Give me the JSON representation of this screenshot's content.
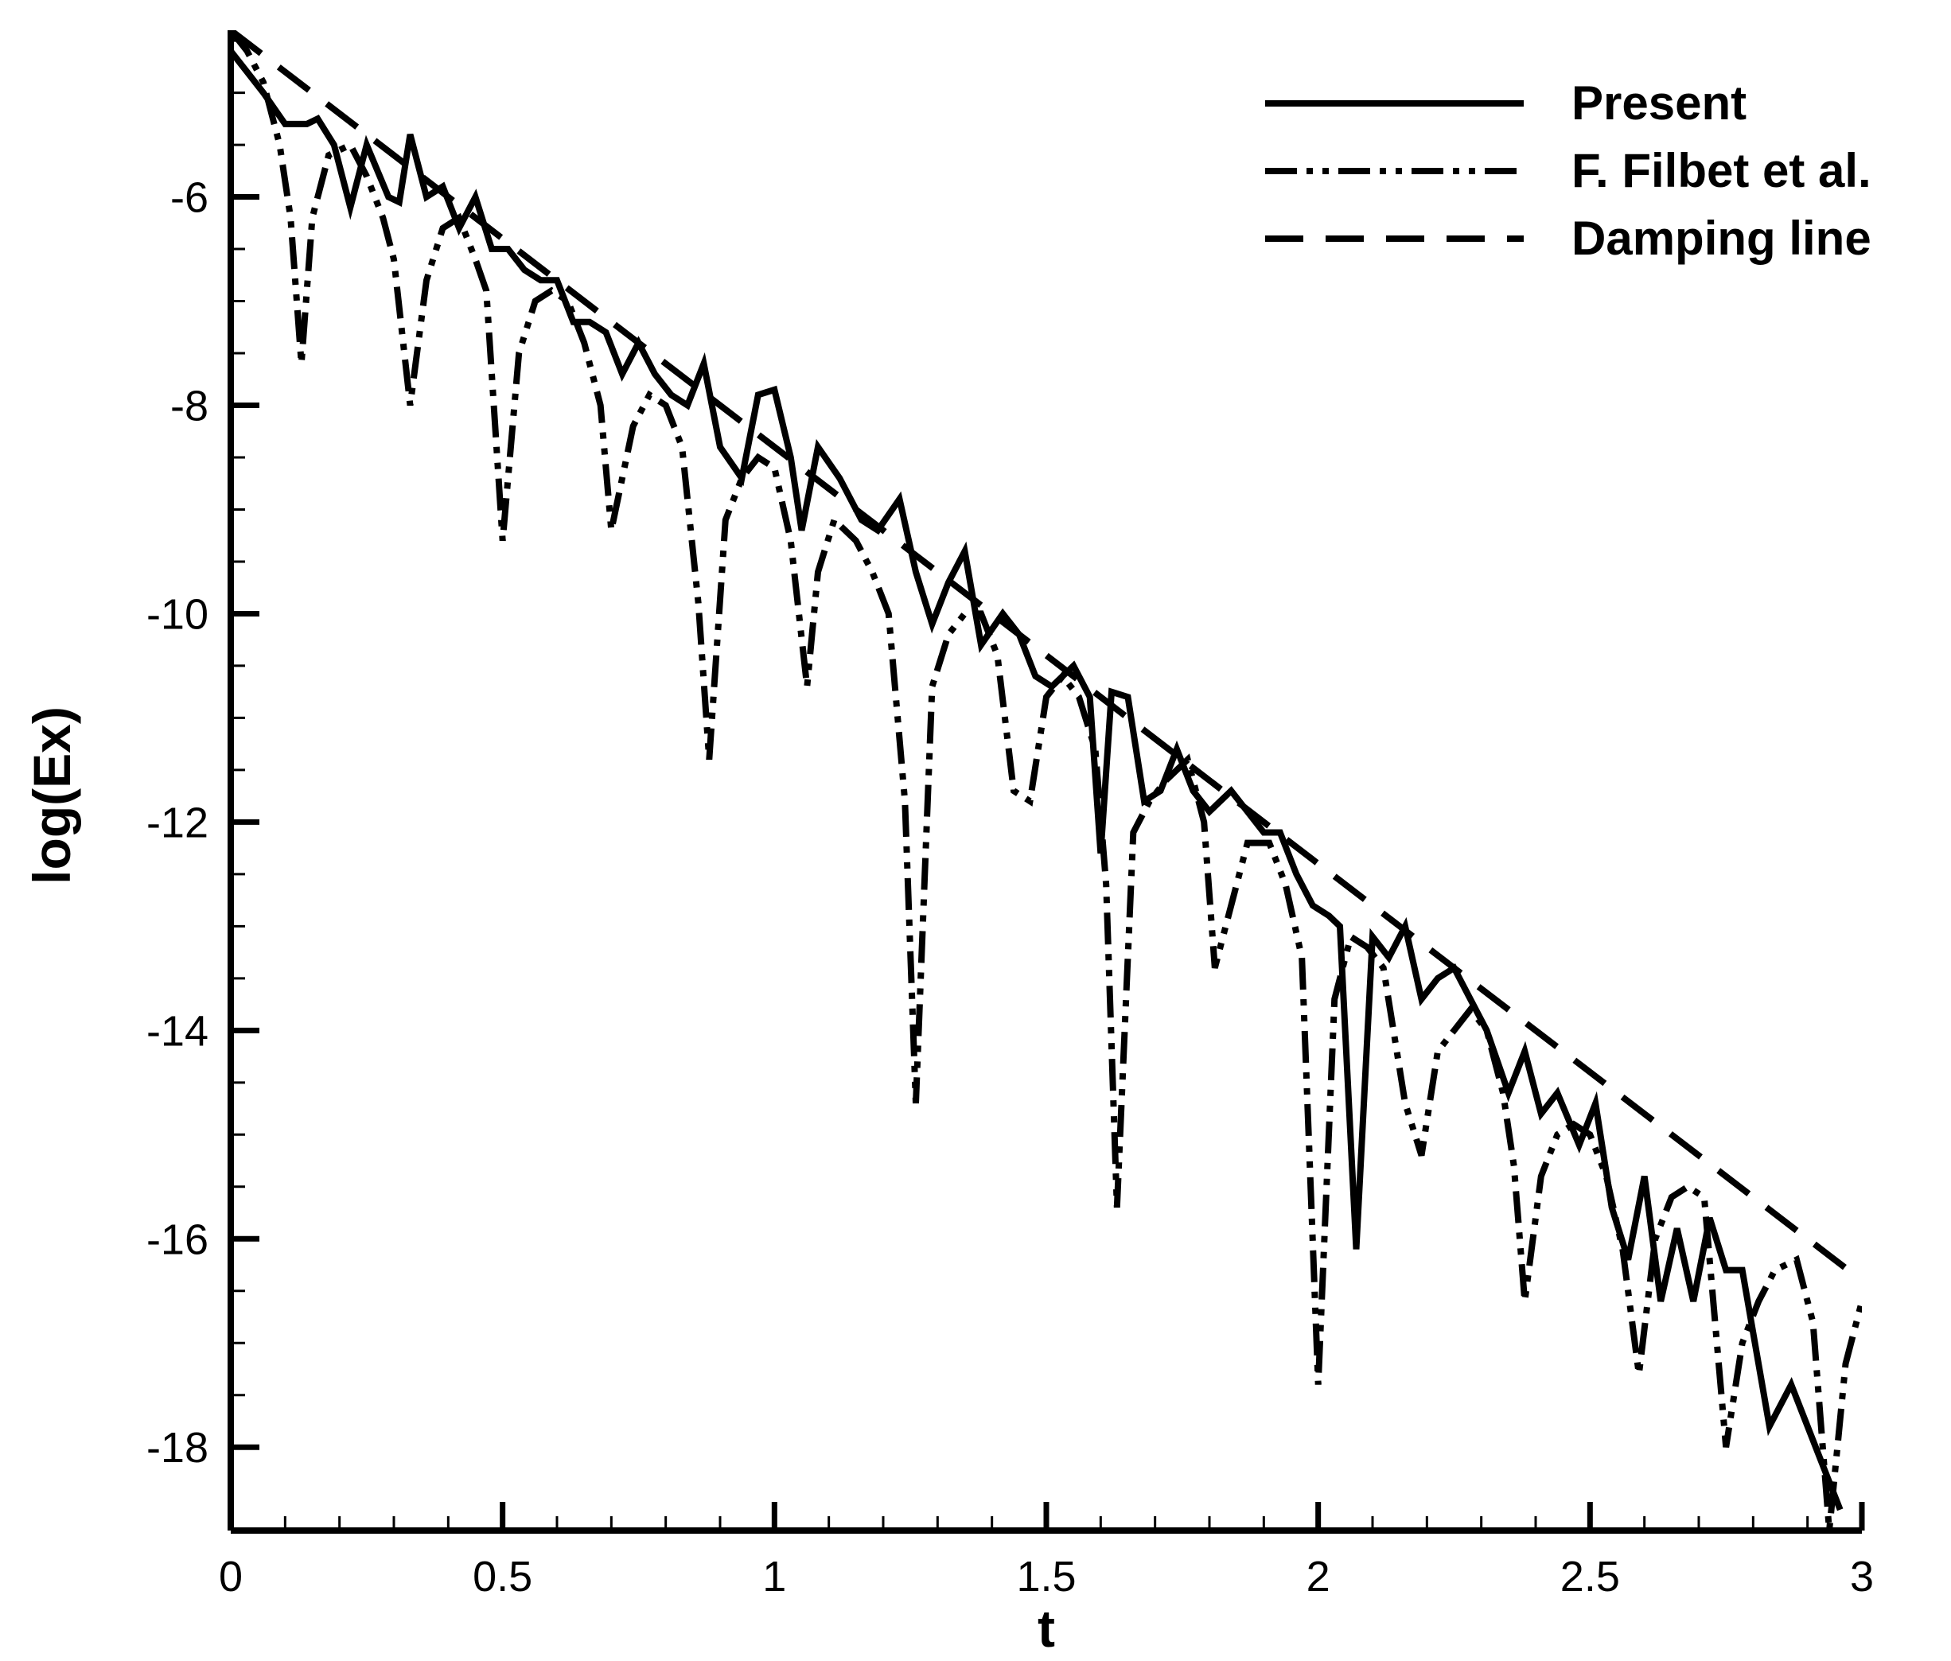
{
  "chart_data": {
    "type": "line",
    "title": "",
    "xlabel": "t",
    "ylabel": "log(Ex)",
    "xlim": [
      0,
      3
    ],
    "ylim": [
      -18.8,
      -4.4
    ],
    "xticks": [
      0,
      0.5,
      1,
      1.5,
      2,
      2.5,
      3
    ],
    "xtick_labels": [
      "0",
      "0.5",
      "1",
      "1.5",
      "2",
      "2.5",
      "3"
    ],
    "yticks": [
      -6,
      -8,
      -10,
      -12,
      -14,
      -16,
      -18
    ],
    "ytick_labels": [
      "-6",
      "-8",
      "-10",
      "-12",
      "-14",
      "-16",
      "-18"
    ],
    "grid": false,
    "legend_position": "top-right",
    "series": [
      {
        "name": "Present",
        "style": "solid",
        "x": [
          0,
          0.03,
          0.06,
          0.1,
          0.14,
          0.16,
          0.19,
          0.22,
          0.25,
          0.29,
          0.31,
          0.33,
          0.36,
          0.39,
          0.42,
          0.45,
          0.48,
          0.51,
          0.54,
          0.57,
          0.6,
          0.63,
          0.66,
          0.69,
          0.72,
          0.75,
          0.78,
          0.81,
          0.84,
          0.87,
          0.9,
          0.94,
          0.97,
          1.0,
          1.03,
          1.05,
          1.08,
          1.12,
          1.16,
          1.19,
          1.23,
          1.26,
          1.29,
          1.32,
          1.35,
          1.38,
          1.42,
          1.45,
          1.48,
          1.51,
          1.55,
          1.58,
          1.6,
          1.62,
          1.65,
          1.68,
          1.71,
          1.74,
          1.77,
          1.8,
          1.84,
          1.87,
          1.9,
          1.93,
          1.96,
          1.99,
          2.02,
          2.04,
          2.07,
          2.1,
          2.13,
          2.16,
          2.19,
          2.22,
          2.25,
          2.29,
          2.31,
          2.35,
          2.38,
          2.41,
          2.44,
          2.48,
          2.51,
          2.54,
          2.57,
          2.6,
          2.63,
          2.66,
          2.69,
          2.72,
          2.75,
          2.78,
          2.8,
          2.83,
          2.87,
          2.9,
          2.93,
          2.96
        ],
        "y": [
          -4.6,
          -4.8,
          -5.0,
          -5.3,
          -5.3,
          -5.25,
          -5.5,
          -6.1,
          -5.5,
          -6.0,
          -6.05,
          -5.4,
          -6.0,
          -5.9,
          -6.3,
          -6.0,
          -6.5,
          -6.5,
          -6.7,
          -6.8,
          -6.8,
          -7.2,
          -7.2,
          -7.3,
          -7.7,
          -7.4,
          -7.7,
          -7.9,
          -8.0,
          -7.6,
          -8.4,
          -8.7,
          -7.9,
          -7.85,
          -8.5,
          -9.2,
          -8.4,
          -8.7,
          -9.1,
          -9.2,
          -8.9,
          -9.6,
          -10.1,
          -9.7,
          -9.4,
          -10.3,
          -10.0,
          -10.2,
          -10.6,
          -10.7,
          -10.5,
          -10.8,
          -12.3,
          -10.75,
          -10.8,
          -11.8,
          -11.7,
          -11.3,
          -11.7,
          -11.9,
          -11.7,
          -11.9,
          -12.1,
          -12.1,
          -12.5,
          -12.8,
          -12.9,
          -13.0,
          -16.1,
          -13.1,
          -13.3,
          -13.0,
          -13.7,
          -13.5,
          -13.4,
          -13.8,
          -14.0,
          -14.6,
          -14.2,
          -14.8,
          -14.6,
          -15.1,
          -14.7,
          -15.7,
          -16.2,
          -15.4,
          -16.6,
          -15.9,
          -16.6,
          -15.8,
          -16.3,
          -16.3,
          -16.9,
          -17.8,
          -17.4,
          -17.8,
          -18.2,
          -18.6
        ]
      },
      {
        "name": "F. Filbet et al.",
        "style": "dash-dot-dot",
        "x": [
          0,
          0.03,
          0.06,
          0.09,
          0.11,
          0.13,
          0.15,
          0.18,
          0.22,
          0.25,
          0.28,
          0.3,
          0.33,
          0.36,
          0.39,
          0.42,
          0.45,
          0.47,
          0.5,
          0.53,
          0.56,
          0.59,
          0.62,
          0.65,
          0.68,
          0.7,
          0.74,
          0.77,
          0.8,
          0.83,
          0.86,
          0.88,
          0.91,
          0.94,
          0.97,
          1.0,
          1.03,
          1.06,
          1.08,
          1.11,
          1.15,
          1.18,
          1.21,
          1.24,
          1.26,
          1.29,
          1.32,
          1.35,
          1.38,
          1.41,
          1.44,
          1.47,
          1.5,
          1.53,
          1.56,
          1.59,
          1.61,
          1.63,
          1.66,
          1.69,
          1.72,
          1.76,
          1.79,
          1.81,
          1.84,
          1.87,
          1.91,
          1.94,
          1.97,
          2.0,
          2.03,
          2.06,
          2.09,
          2.12,
          2.16,
          2.19,
          2.22,
          2.25,
          2.28,
          2.31,
          2.34,
          2.36,
          2.38,
          2.41,
          2.44,
          2.47,
          2.5,
          2.53,
          2.56,
          2.59,
          2.62,
          2.65,
          2.68,
          2.71,
          2.75,
          2.78,
          2.81,
          2.84,
          2.88,
          2.91,
          2.94,
          2.97,
          3.0
        ],
        "y": [
          -4.4,
          -4.6,
          -4.9,
          -5.5,
          -6.2,
          -7.6,
          -6.2,
          -5.6,
          -5.5,
          -5.8,
          -6.2,
          -6.6,
          -8.0,
          -6.8,
          -6.3,
          -6.2,
          -6.6,
          -6.9,
          -9.3,
          -7.5,
          -7.0,
          -6.9,
          -7.0,
          -7.4,
          -8.0,
          -9.2,
          -8.2,
          -7.9,
          -8.0,
          -8.4,
          -9.9,
          -11.4,
          -9.1,
          -8.7,
          -8.5,
          -8.6,
          -9.3,
          -10.7,
          -9.6,
          -9.1,
          -9.3,
          -9.6,
          -10.0,
          -11.8,
          -14.7,
          -10.7,
          -10.2,
          -10.0,
          -10.0,
          -10.4,
          -11.7,
          -11.8,
          -10.8,
          -10.6,
          -10.8,
          -11.3,
          -12.6,
          -15.7,
          -12.1,
          -11.8,
          -11.6,
          -11.4,
          -12.0,
          -13.4,
          -12.8,
          -12.2,
          -12.2,
          -12.6,
          -13.3,
          -17.4,
          -13.7,
          -13.1,
          -13.2,
          -13.4,
          -14.7,
          -15.2,
          -14.2,
          -14.0,
          -13.8,
          -14.0,
          -14.6,
          -15.3,
          -16.6,
          -15.4,
          -15.0,
          -14.9,
          -15.0,
          -15.4,
          -16.1,
          -17.3,
          -16.0,
          -15.6,
          -15.5,
          -15.6,
          -18.0,
          -17.0,
          -16.6,
          -16.3,
          -16.2,
          -16.8,
          -18.8,
          -17.2,
          -16.6
        ]
      },
      {
        "name": "Damping line",
        "style": "dashed",
        "x": [
          0,
          3
        ],
        "y": [
          -4.4,
          -16.4
        ]
      }
    ]
  }
}
